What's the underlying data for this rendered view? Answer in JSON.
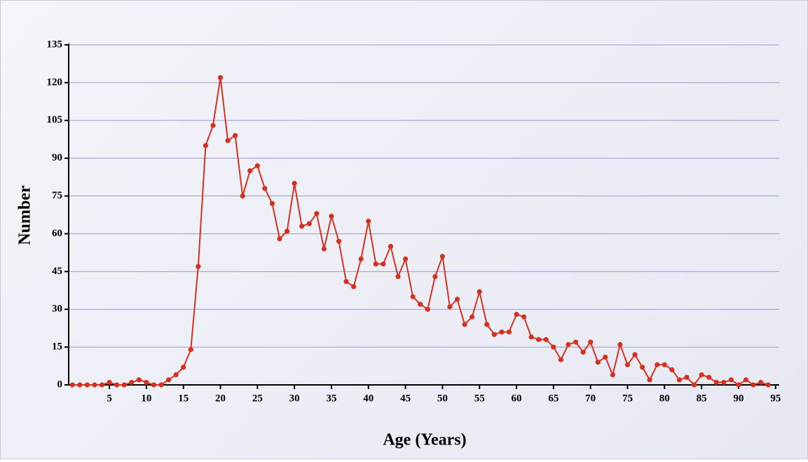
{
  "chart_data": {
    "type": "line",
    "xlabel": "Age (Years)",
    "ylabel": "Number",
    "x": [
      0,
      1,
      2,
      3,
      4,
      5,
      6,
      7,
      8,
      9,
      10,
      11,
      12,
      13,
      14,
      15,
      16,
      17,
      18,
      19,
      20,
      21,
      22,
      23,
      24,
      25,
      26,
      27,
      28,
      29,
      30,
      31,
      32,
      33,
      34,
      35,
      36,
      37,
      38,
      39,
      40,
      41,
      42,
      43,
      44,
      45,
      46,
      47,
      48,
      49,
      50,
      51,
      52,
      53,
      54,
      55,
      56,
      57,
      58,
      59,
      60,
      61,
      62,
      63,
      64,
      65,
      66,
      67,
      68,
      69,
      70,
      71,
      72,
      73,
      74,
      75,
      76,
      77,
      78,
      79,
      80,
      81,
      82,
      83,
      84,
      85,
      86,
      87,
      88,
      89,
      90,
      91,
      92,
      93,
      94
    ],
    "series": [
      {
        "name": "Number",
        "color": "#d2321f",
        "values": [
          0,
          0,
          0,
          0,
          0,
          1,
          0,
          0,
          1,
          2,
          1,
          0,
          0,
          2,
          4,
          7,
          14,
          47,
          95,
          103,
          122,
          97,
          99,
          75,
          85,
          87,
          78,
          72,
          58,
          61,
          80,
          63,
          64,
          68,
          54,
          67,
          57,
          41,
          39,
          50,
          65,
          48,
          48,
          55,
          43,
          50,
          35,
          32,
          30,
          43,
          51,
          31,
          34,
          24,
          27,
          37,
          24,
          20,
          21,
          21,
          28,
          27,
          19,
          18,
          18,
          15,
          10,
          16,
          17,
          13,
          17,
          9,
          11,
          4,
          16,
          8,
          12,
          7,
          2,
          8,
          8,
          6,
          2,
          3,
          0,
          4,
          3,
          1,
          1,
          2,
          0,
          2,
          0,
          1,
          0
        ]
      }
    ],
    "xlim": [
      -0.5,
      95.5
    ],
    "ylim": [
      0,
      135
    ],
    "xticks": [
      5,
      10,
      15,
      20,
      25,
      30,
      35,
      40,
      45,
      50,
      55,
      60,
      65,
      70,
      75,
      80,
      85,
      90,
      95
    ],
    "yticks": [
      0,
      15,
      30,
      45,
      60,
      75,
      90,
      105,
      120,
      135
    ],
    "grid": true
  }
}
